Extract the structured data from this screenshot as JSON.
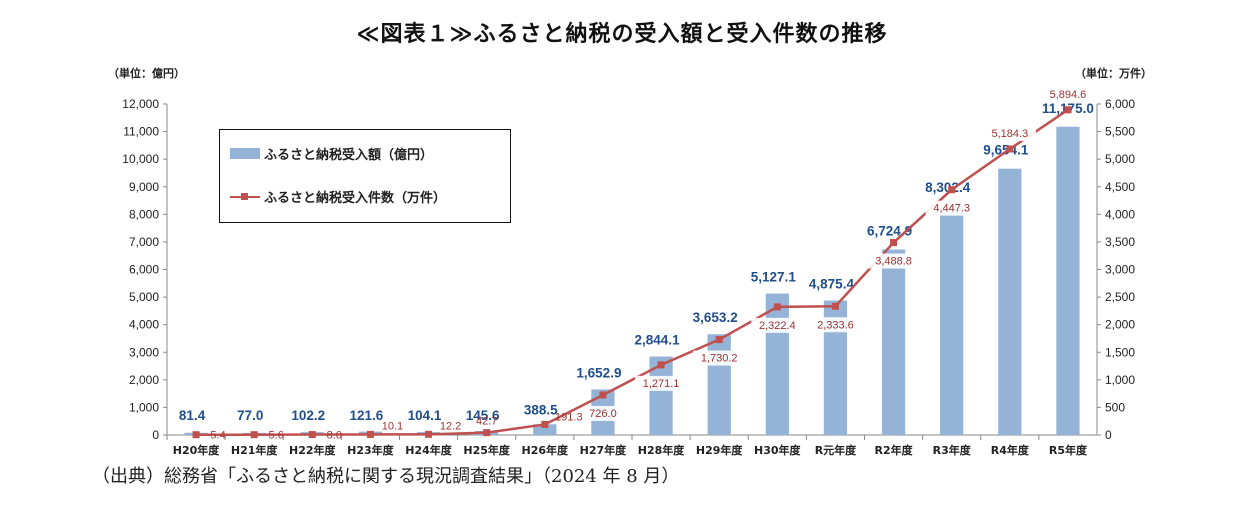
{
  "chart_data": {
    "type": "bar",
    "title": "≪図表１≫ふるさと納税の受入額と受入件数の推移",
    "left_unit": "（単位：億円）",
    "right_unit": "（単位：万件）",
    "categories": [
      "H20年度",
      "H21年度",
      "H22年度",
      "H23年度",
      "H24年度",
      "H25年度",
      "H26年度",
      "H27年度",
      "H28年度",
      "H29年度",
      "H30年度",
      "R元年度",
      "R2年度",
      "R3年度",
      "R4年度",
      "R5年度"
    ],
    "series": [
      {
        "name": "ふるさと納税受入額（億円）",
        "type": "bar",
        "axis": "left",
        "color": "#95b3d7",
        "values": [
          81.4,
          77.0,
          102.2,
          121.6,
          104.1,
          145.6,
          388.5,
          1652.9,
          2844.1,
          3653.2,
          5127.1,
          4875.4,
          6724.9,
          8302.4,
          9654.1,
          11175.0
        ],
        "labels": [
          "81.4",
          "77.0",
          "102.2",
          "121.6",
          "104.1",
          "145.6",
          "388.5",
          "1,652.9",
          "2,844.1",
          "3,653.2",
          "5,127.1",
          "4,875.4",
          "6,724.9",
          "8,302.4",
          "9,654.1",
          "11,175.0"
        ]
      },
      {
        "name": "ふるさと納税受入件数（万件）",
        "type": "line",
        "axis": "right",
        "color": "#c0504d",
        "values": [
          5.4,
          5.6,
          8.0,
          10.1,
          12.2,
          42.7,
          191.3,
          726.0,
          1271.1,
          1730.2,
          2322.4,
          2333.6,
          3488.8,
          4447.3,
          5184.3,
          5894.6
        ],
        "labels": [
          "5.4",
          "5.6",
          "8.0",
          "10.1",
          "12.2",
          "42.7",
          "191.3",
          "726.0",
          "1,271.1",
          "1,730.2",
          "2,322.4",
          "2,333.6",
          "3,488.8",
          "4,447.3",
          "5,184.3",
          "5,894.6"
        ]
      }
    ],
    "y_left": {
      "min": 0,
      "max": 12000,
      "ticks": [
        "0",
        "1,000",
        "2,000",
        "3,000",
        "4,000",
        "5,000",
        "6,000",
        "7,000",
        "8,000",
        "9,000",
        "10,000",
        "11,000",
        "12,000"
      ]
    },
    "y_right": {
      "min": 0,
      "max": 6000,
      "ticks": [
        "0",
        "500",
        "1,000",
        "1,500",
        "2,000",
        "2,500",
        "3,000",
        "3,500",
        "4,000",
        "4,500",
        "5,000",
        "5,500",
        "6,000"
      ]
    },
    "legend_position": "top-left",
    "grid": false
  },
  "source": "（出典）総務省「ふるさと納税に関する現況調査結果」（2024 年 8 月）"
}
